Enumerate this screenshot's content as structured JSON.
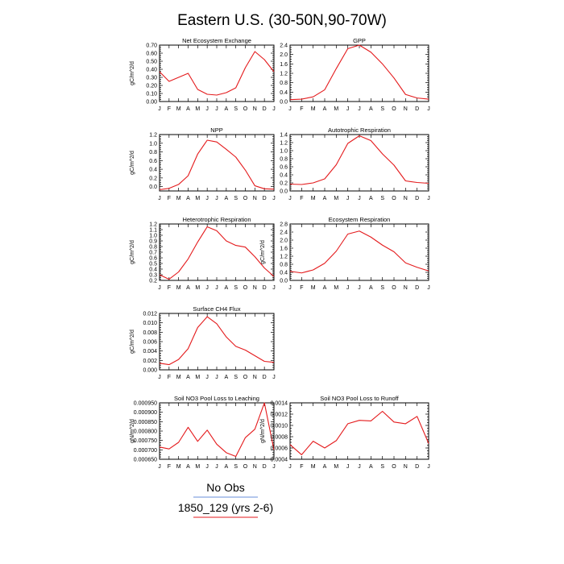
{
  "title": "Eastern U.S. (30-50N,90-70W)",
  "months": [
    "J",
    "F",
    "M",
    "A",
    "M",
    "J",
    "J",
    "A",
    "S",
    "O",
    "N",
    "D",
    "J"
  ],
  "legend": {
    "entries": [
      {
        "label": "No Obs",
        "color": "#6a8fd8"
      },
      {
        "label": "1850_129 (yrs 2-6)",
        "color": "#e41a1c"
      }
    ]
  },
  "series_color": "#e41a1c",
  "chart_data": [
    {
      "type": "line",
      "title": "Net Ecosystem Exchange",
      "ylabel": "gC/m^2/d",
      "ylim": [
        0,
        0.7
      ],
      "yticks": [
        "0.00",
        "0.10",
        "0.20",
        "0.30",
        "0.40",
        "0.50",
        "0.60",
        "0.70"
      ],
      "values": [
        0.37,
        0.25,
        0.3,
        0.35,
        0.15,
        0.09,
        0.08,
        0.11,
        0.17,
        0.42,
        0.62,
        0.52,
        0.37
      ]
    },
    {
      "type": "line",
      "title": "GPP",
      "ylabel": "",
      "ylim": [
        0,
        2.4
      ],
      "yticks": [
        "0.0",
        "0.4",
        "0.8",
        "1.2",
        "1.6",
        "2.0",
        "2.4"
      ],
      "values": [
        0.08,
        0.1,
        0.2,
        0.5,
        1.4,
        2.25,
        2.4,
        2.1,
        1.6,
        1.0,
        0.3,
        0.15,
        0.1
      ]
    },
    {
      "type": "line",
      "title": "NPP",
      "ylabel": "gC/m^2/d",
      "ylim": [
        -0.1,
        1.2
      ],
      "yticks": [
        "0.0",
        "0.2",
        "0.4",
        "0.6",
        "0.8",
        "1.0",
        "1.2"
      ],
      "values": [
        -0.07,
        -0.04,
        0.05,
        0.25,
        0.75,
        1.07,
        1.03,
        0.86,
        0.68,
        0.38,
        0.02,
        -0.05,
        -0.06
      ]
    },
    {
      "type": "line",
      "title": "Autotrophic Respiration",
      "ylabel": "",
      "ylim": [
        0,
        1.4
      ],
      "yticks": [
        "0.0",
        "0.2",
        "0.4",
        "0.6",
        "0.8",
        "1.0",
        "1.2",
        "1.4"
      ],
      "values": [
        0.17,
        0.16,
        0.2,
        0.3,
        0.65,
        1.18,
        1.37,
        1.25,
        0.92,
        0.64,
        0.25,
        0.21,
        0.19
      ]
    },
    {
      "type": "line",
      "title": "Heterotrophic Respiration",
      "ylabel": "gC/m^2/d",
      "ylim": [
        0.2,
        1.2
      ],
      "yticks": [
        "0.2",
        "0.3",
        "0.4",
        "0.5",
        "0.6",
        "0.7",
        "0.8",
        "0.9",
        "1.0",
        "1.1",
        "1.2"
      ],
      "values": [
        0.3,
        0.22,
        0.35,
        0.58,
        0.88,
        1.15,
        1.08,
        0.9,
        0.82,
        0.79,
        0.62,
        0.42,
        0.27
      ]
    },
    {
      "type": "line",
      "title": "Ecosystem Respiration",
      "ylabel": "gC/m^2/d",
      "ylim": [
        0,
        2.8
      ],
      "yticks": [
        "0.0",
        "0.4",
        "0.8",
        "1.2",
        "1.6",
        "2.0",
        "2.4",
        "2.8"
      ],
      "values": [
        0.45,
        0.37,
        0.52,
        0.85,
        1.45,
        2.3,
        2.45,
        2.15,
        1.75,
        1.42,
        0.87,
        0.65,
        0.47
      ]
    },
    {
      "type": "line",
      "title": "Surface CH4 Flux",
      "ylabel": "gC/m^2/d",
      "ylim": [
        0,
        0.012
      ],
      "yticks": [
        "0.000",
        "0.002",
        "0.004",
        "0.006",
        "0.008",
        "0.010",
        "0.012"
      ],
      "values": [
        0.0014,
        0.0011,
        0.0022,
        0.0045,
        0.009,
        0.0113,
        0.0098,
        0.007,
        0.005,
        0.0042,
        0.003,
        0.0018,
        0.0016
      ]
    },
    {
      "type": "line",
      "title": "Soil NO3 Pool Loss to Leaching",
      "ylabel": "gN/m^2/d",
      "ylim": [
        0.00065,
        0.00095
      ],
      "yticks": [
        "0.000650",
        "0.000700",
        "0.000750",
        "0.000800",
        "0.000850",
        "0.000900",
        "0.000950"
      ],
      "values": [
        0.000715,
        0.000705,
        0.00074,
        0.00082,
        0.000745,
        0.000805,
        0.00073,
        0.000685,
        0.000665,
        0.000765,
        0.00081,
        0.00095,
        0.0007
      ]
    },
    {
      "type": "line",
      "title": "Soil NO3 Pool Loss to Runoff",
      "ylabel": "gN/m^2/d",
      "ylim": [
        0.0004,
        0.0014
      ],
      "yticks": [
        "0.0004",
        "0.0006",
        "0.0008",
        "0.0010",
        "0.0012",
        "0.0014"
      ],
      "values": [
        0.00066,
        0.00048,
        0.00072,
        0.0006,
        0.00073,
        0.00103,
        0.00109,
        0.00108,
        0.00125,
        0.00106,
        0.00103,
        0.00116,
        0.00068
      ]
    }
  ]
}
